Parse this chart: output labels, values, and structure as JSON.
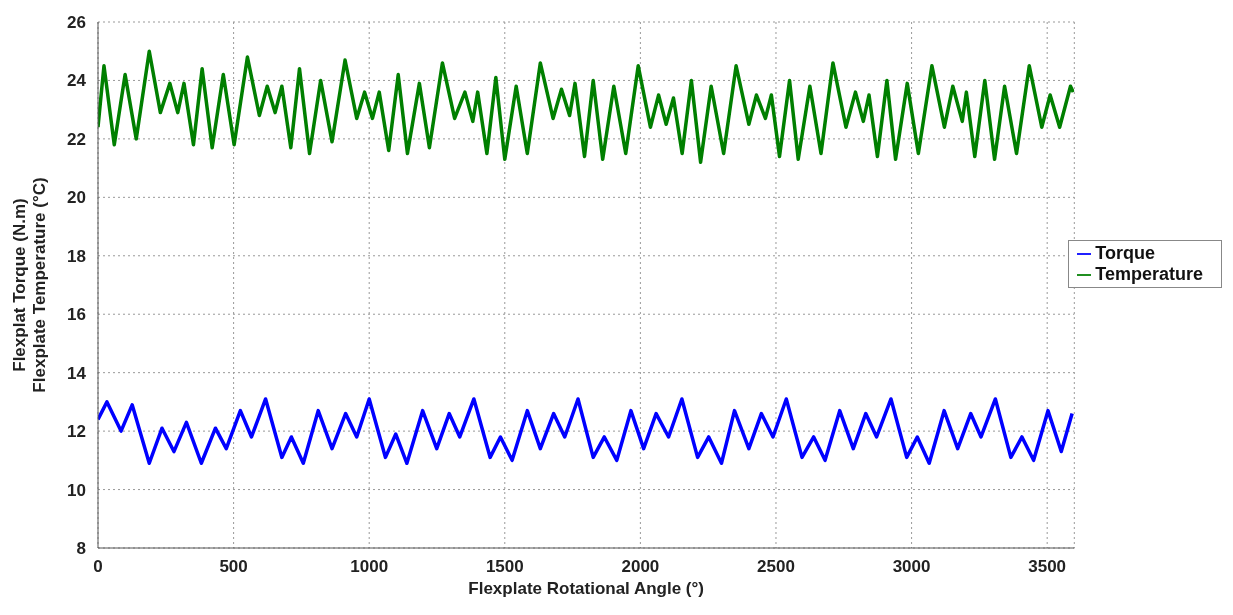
{
  "chart_data": {
    "type": "line",
    "xlabel": "Flexplate Rotational Angle (°)",
    "ylabel": "Flexplat Torque (N.m)\nFlexplate Temperature (°C)",
    "xlim": [
      0,
      3600
    ],
    "xticks": [
      0,
      500,
      1000,
      1500,
      2000,
      2500,
      3000,
      3500
    ],
    "ylim": [
      8,
      26
    ],
    "yticks": [
      8,
      10,
      12,
      14,
      16,
      18,
      20,
      22,
      24,
      26
    ],
    "grid": true,
    "legend": "right",
    "series": [
      {
        "name": "Torque",
        "color": "#0000ff",
        "x": [
          0,
          33,
          85,
          126,
          189,
          236,
          280,
          326,
          381,
          433,
          473,
          525,
          566,
          618,
          678,
          713,
          757,
          812,
          863,
          913,
          954,
          1000,
          1060,
          1098,
          1139,
          1197,
          1249,
          1295,
          1334,
          1386,
          1446,
          1484,
          1527,
          1583,
          1631,
          1680,
          1721,
          1770,
          1826,
          1867,
          1913,
          1965,
          2012,
          2058,
          2104,
          2153,
          2211,
          2252,
          2299,
          2347,
          2400,
          2446,
          2489,
          2538,
          2596,
          2639,
          2681,
          2735,
          2785,
          2831,
          2871,
          2924,
          2982,
          3021,
          3065,
          3120,
          3170,
          3218,
          3256,
          3309,
          3366,
          3407,
          3450,
          3503,
          3552,
          3592
        ],
        "values": [
          12.4,
          13.0,
          12.0,
          12.9,
          10.9,
          12.1,
          11.3,
          12.3,
          10.9,
          12.1,
          11.4,
          12.7,
          11.8,
          13.1,
          11.1,
          11.8,
          10.9,
          12.7,
          11.4,
          12.6,
          11.8,
          13.1,
          11.1,
          11.9,
          10.9,
          12.7,
          11.4,
          12.6,
          11.8,
          13.1,
          11.1,
          11.8,
          11.0,
          12.7,
          11.4,
          12.6,
          11.8,
          13.1,
          11.1,
          11.8,
          11.0,
          12.7,
          11.4,
          12.6,
          11.8,
          13.1,
          11.1,
          11.8,
          10.9,
          12.7,
          11.4,
          12.6,
          11.8,
          13.1,
          11.1,
          11.8,
          11.0,
          12.7,
          11.4,
          12.6,
          11.8,
          13.1,
          11.1,
          11.8,
          10.9,
          12.7,
          11.4,
          12.6,
          11.8,
          13.1,
          11.1,
          11.8,
          11.0,
          12.7,
          11.3,
          12.6
        ]
      },
      {
        "name": "Temperature",
        "color": "#007f00",
        "x": [
          0,
          22,
          60,
          100,
          141,
          189,
          230,
          265,
          294,
          317,
          352,
          384,
          421,
          462,
          502,
          551,
          595,
          624,
          653,
          678,
          711,
          743,
          780,
          821,
          863,
          911,
          954,
          983,
          1012,
          1037,
          1072,
          1107,
          1141,
          1185,
          1222,
          1270,
          1315,
          1353,
          1382,
          1400,
          1434,
          1467,
          1500,
          1542,
          1583,
          1631,
          1678,
          1709,
          1739,
          1759,
          1794,
          1826,
          1861,
          1902,
          1946,
          1992,
          2037,
          2067,
          2095,
          2122,
          2154,
          2188,
          2222,
          2261,
          2307,
          2353,
          2400,
          2428,
          2461,
          2483,
          2513,
          2550,
          2582,
          2625,
          2666,
          2710,
          2758,
          2793,
          2822,
          2843,
          2874,
          2909,
          2941,
          2984,
          3025,
          3075,
          3121,
          3152,
          3187,
          3202,
          3233,
          3270,
          3306,
          3343,
          3387,
          3434,
          3480,
          3511,
          3546,
          3586,
          3596
        ],
        "values": [
          22.4,
          24.5,
          21.8,
          24.2,
          22.0,
          25.0,
          22.9,
          23.9,
          22.9,
          23.9,
          21.8,
          24.4,
          21.7,
          24.2,
          21.8,
          24.8,
          22.8,
          23.8,
          22.9,
          23.8,
          21.7,
          24.4,
          21.5,
          24.0,
          21.9,
          24.7,
          22.7,
          23.6,
          22.7,
          23.6,
          21.6,
          24.2,
          21.5,
          23.9,
          21.7,
          24.6,
          22.7,
          23.6,
          22.6,
          23.6,
          21.5,
          24.1,
          21.3,
          23.8,
          21.5,
          24.6,
          22.7,
          23.7,
          22.8,
          23.9,
          21.4,
          24.0,
          21.3,
          23.8,
          21.5,
          24.5,
          22.4,
          23.5,
          22.5,
          23.4,
          21.5,
          24.0,
          21.2,
          23.8,
          21.5,
          24.5,
          22.5,
          23.5,
          22.7,
          23.5,
          21.4,
          24.0,
          21.3,
          23.8,
          21.5,
          24.6,
          22.4,
          23.6,
          22.6,
          23.5,
          21.4,
          24.0,
          21.3,
          23.9,
          21.5,
          24.5,
          22.4,
          23.8,
          22.6,
          23.6,
          21.4,
          24.0,
          21.3,
          23.8,
          21.5,
          24.5,
          22.4,
          23.5,
          22.4,
          23.8,
          23.6
        ]
      }
    ]
  }
}
